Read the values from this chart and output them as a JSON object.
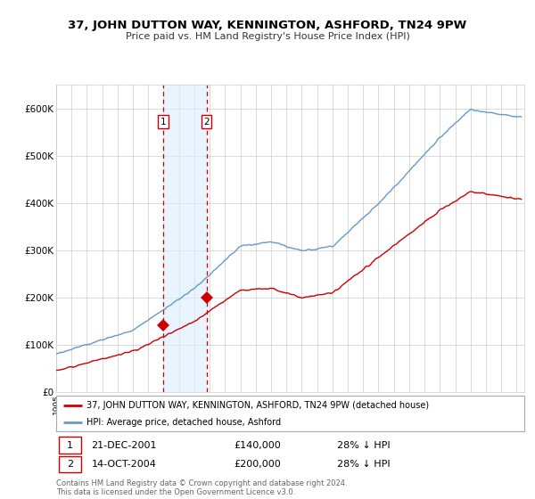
{
  "title": "37, JOHN DUTTON WAY, KENNINGTON, ASHFORD, TN24 9PW",
  "subtitle": "Price paid vs. HM Land Registry's House Price Index (HPI)",
  "ylabel_ticks": [
    "£0",
    "£100K",
    "£200K",
    "£300K",
    "£400K",
    "£500K",
    "£600K"
  ],
  "ytick_vals": [
    0,
    100000,
    200000,
    300000,
    400000,
    500000,
    600000
  ],
  "ylim": [
    0,
    650000
  ],
  "xlim_start": 1995.0,
  "xlim_end": 2025.5,
  "sale1_x": 2001.97,
  "sale1_y": 140000,
  "sale2_x": 2004.79,
  "sale2_y": 200000,
  "sale1_date": "21-DEC-2001",
  "sale1_price": "£140,000",
  "sale1_hpi": "28% ↓ HPI",
  "sale2_date": "14-OCT-2004",
  "sale2_price": "£200,000",
  "sale2_hpi": "28% ↓ HPI",
  "legend_line1": "37, JOHN DUTTON WAY, KENNINGTON, ASHFORD, TN24 9PW (detached house)",
  "legend_line2": "HPI: Average price, detached house, Ashford",
  "footer": "Contains HM Land Registry data © Crown copyright and database right 2024.\nThis data is licensed under the Open Government Licence v3.0.",
  "line_color_red": "#cc0000",
  "line_color_blue": "#6699cc",
  "shade_color": "#ddeeff",
  "vline_color": "#cc0000",
  "background_color": "#ffffff",
  "grid_color": "#cccccc"
}
